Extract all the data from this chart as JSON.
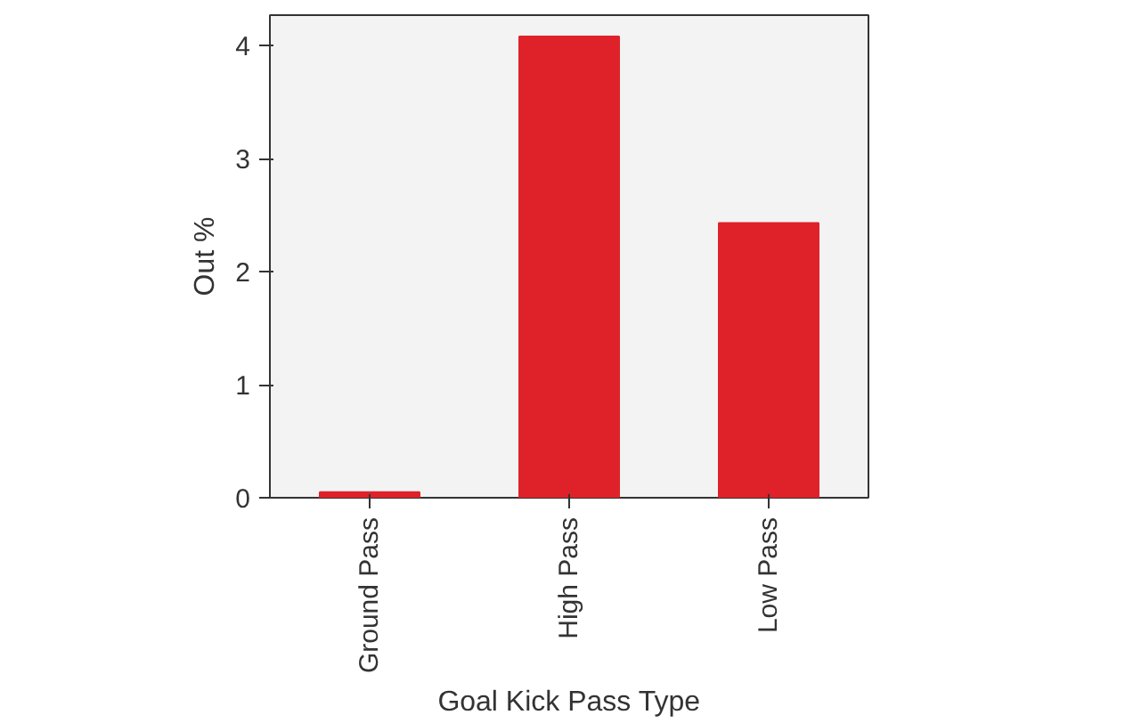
{
  "chart_data": {
    "type": "bar",
    "xlabel": "Goal Kick Pass Type",
    "ylabel": "Out %",
    "categories": [
      "Ground Pass",
      "High Pass",
      "Low Pass"
    ],
    "values": [
      0.05,
      4.08,
      2.43
    ],
    "color": "#df2229",
    "ylim": [
      0,
      4.27
    ],
    "yticks": [
      0,
      1,
      2,
      3,
      4
    ],
    "grid": false
  }
}
